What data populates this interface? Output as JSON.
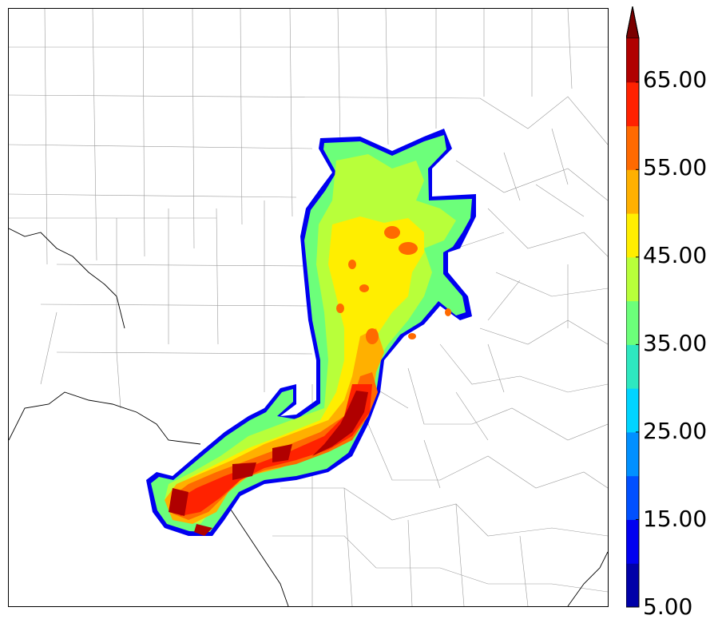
{
  "colorbar": {
    "levels": [
      5,
      10,
      15,
      20,
      25,
      30,
      35,
      40,
      45,
      50,
      55,
      60,
      65,
      70
    ],
    "colors": [
      "#0000a8",
      "#0000f0",
      "#0050ff",
      "#0090ff",
      "#00d4ff",
      "#2ee8c0",
      "#6cff7a",
      "#b8ff3a",
      "#ffee00",
      "#ffb000",
      "#ff6a00",
      "#ff2200",
      "#b00000"
    ],
    "extend_color": "#7a0000",
    "tick_labels": [
      "5.00",
      "15.00",
      "25.00",
      "35.00",
      "45.00",
      "55.00",
      "65.00"
    ]
  },
  "map": {
    "border_color": "#000000",
    "county_line_color": "#9a9a9a",
    "state_line_color": "#000000"
  }
}
